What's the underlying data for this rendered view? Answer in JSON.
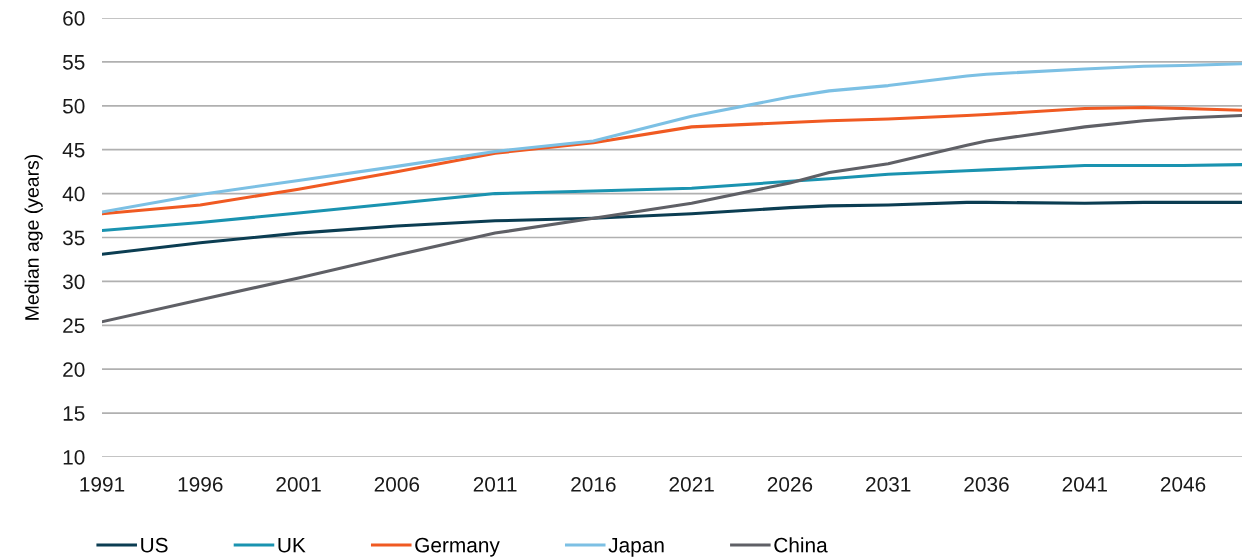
{
  "chart_data": {
    "type": "line",
    "ylabel": "Median age (years)",
    "x": [
      1991,
      1996,
      2001,
      2006,
      2011,
      2016,
      2021,
      2026,
      2028,
      2031,
      2035,
      2036,
      2041,
      2044,
      2046,
      2049
    ],
    "series": [
      {
        "name": "US",
        "color": "#0b3d52",
        "values": [
          33.1,
          34.4,
          35.5,
          36.3,
          36.9,
          37.2,
          37.7,
          38.4,
          38.6,
          38.7,
          39.0,
          39.0,
          38.9,
          39.0,
          39.0,
          39.0
        ]
      },
      {
        "name": "UK",
        "color": "#1a93b0",
        "values": [
          35.8,
          36.7,
          37.8,
          38.9,
          40.0,
          40.3,
          40.6,
          41.4,
          41.7,
          42.2,
          42.6,
          42.7,
          43.2,
          43.2,
          43.2,
          43.3
        ]
      },
      {
        "name": "Germany",
        "color": "#f05a22",
        "values": [
          37.7,
          38.7,
          40.5,
          42.5,
          44.6,
          45.8,
          47.6,
          48.1,
          48.3,
          48.5,
          48.9,
          49.0,
          49.7,
          49.8,
          49.7,
          49.5
        ]
      },
      {
        "name": "Japan",
        "color": "#7cc0e4",
        "values": [
          37.9,
          39.9,
          41.5,
          43.1,
          44.8,
          46.0,
          48.8,
          51.0,
          51.7,
          52.3,
          53.4,
          53.6,
          54.2,
          54.5,
          54.6,
          54.8
        ]
      },
      {
        "name": "China",
        "color": "#5f6066",
        "values": [
          25.4,
          27.9,
          30.4,
          33.0,
          35.5,
          37.2,
          38.9,
          41.2,
          42.4,
          43.4,
          45.5,
          46.0,
          47.6,
          48.3,
          48.6,
          48.9
        ]
      }
    ],
    "xlim": [
      1991,
      2049
    ],
    "xticks": [
      1991,
      1996,
      2001,
      2006,
      2011,
      2016,
      2021,
      2026,
      2031,
      2036,
      2041,
      2046
    ],
    "ylim": [
      10,
      60
    ],
    "yticks": [
      10,
      15,
      20,
      25,
      30,
      35,
      40,
      45,
      50,
      55,
      60
    ],
    "grid": "y",
    "legend": "bottom left",
    "marker": "none",
    "line_style": "solid"
  }
}
